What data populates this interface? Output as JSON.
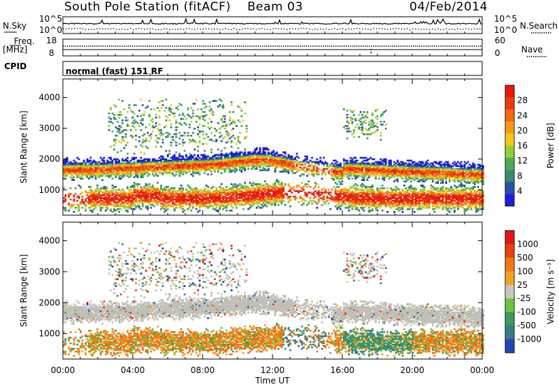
{
  "header": {
    "station": "South Pole Station (fitACF)",
    "beam": "Beam 03",
    "date": "04/Feb/2014"
  },
  "top_panels": {
    "nsky_label": "N.Sky",
    "nsearch_label": "N.Search",
    "noise_tick_high": "10^5",
    "noise_tick_low": "10^0",
    "freq_label_1": "Freq.",
    "freq_label_2": "[MHz]",
    "freq_ticks": [
      "18",
      "8"
    ],
    "nave_label": "Nave",
    "nave_ticks": [
      "60",
      "0"
    ],
    "cpid_label": "CPID",
    "cpid_value": "normal (fast) 151 RF"
  },
  "chart_data": [
    {
      "type": "heatmap",
      "name": "Power",
      "ylabel": "Slant Range [km]",
      "yticks": [
        1000,
        2000,
        3000,
        4000
      ],
      "ylim": [
        180,
        4600
      ],
      "xlim_hours": [
        0,
        24
      ],
      "colorbar_label": "Power [dB]",
      "colorbar_ticks": [
        "28",
        "24",
        "20",
        "16",
        "12",
        "8",
        "4"
      ],
      "colors": [
        "#1c20d8",
        "#2a4fb0",
        "#3c8a6a",
        "#4caa55",
        "#8fcf3c",
        "#f2c818",
        "#f59b18",
        "#f06a10",
        "#e83a10",
        "#e81810"
      ]
    },
    {
      "type": "heatmap",
      "name": "Velocity",
      "ylabel": "Slant Range [km]",
      "yticks": [
        1000,
        2000,
        3000,
        4000
      ],
      "ylim": [
        180,
        4600
      ],
      "xlim_hours": [
        0,
        24
      ],
      "colorbar_label": "Velocity [m s⁻¹]",
      "colorbar_ticks": [
        "1000",
        "500",
        "100",
        "25",
        "-25",
        "-100",
        "-500",
        "-1000"
      ],
      "colors": [
        "#2244b8",
        "#3a7a8a",
        "#3c9a60",
        "#6cc43c",
        "#c8c8c0",
        "#f5a020",
        "#f07818",
        "#e84010",
        "#e01818"
      ],
      "ground_scatter_color": "#c0c0b8"
    }
  ],
  "xaxis": {
    "label": "Time UT",
    "ticks": [
      "00:00",
      "04:00",
      "08:00",
      "12:00",
      "16:00",
      "20:00",
      "00:00"
    ]
  }
}
